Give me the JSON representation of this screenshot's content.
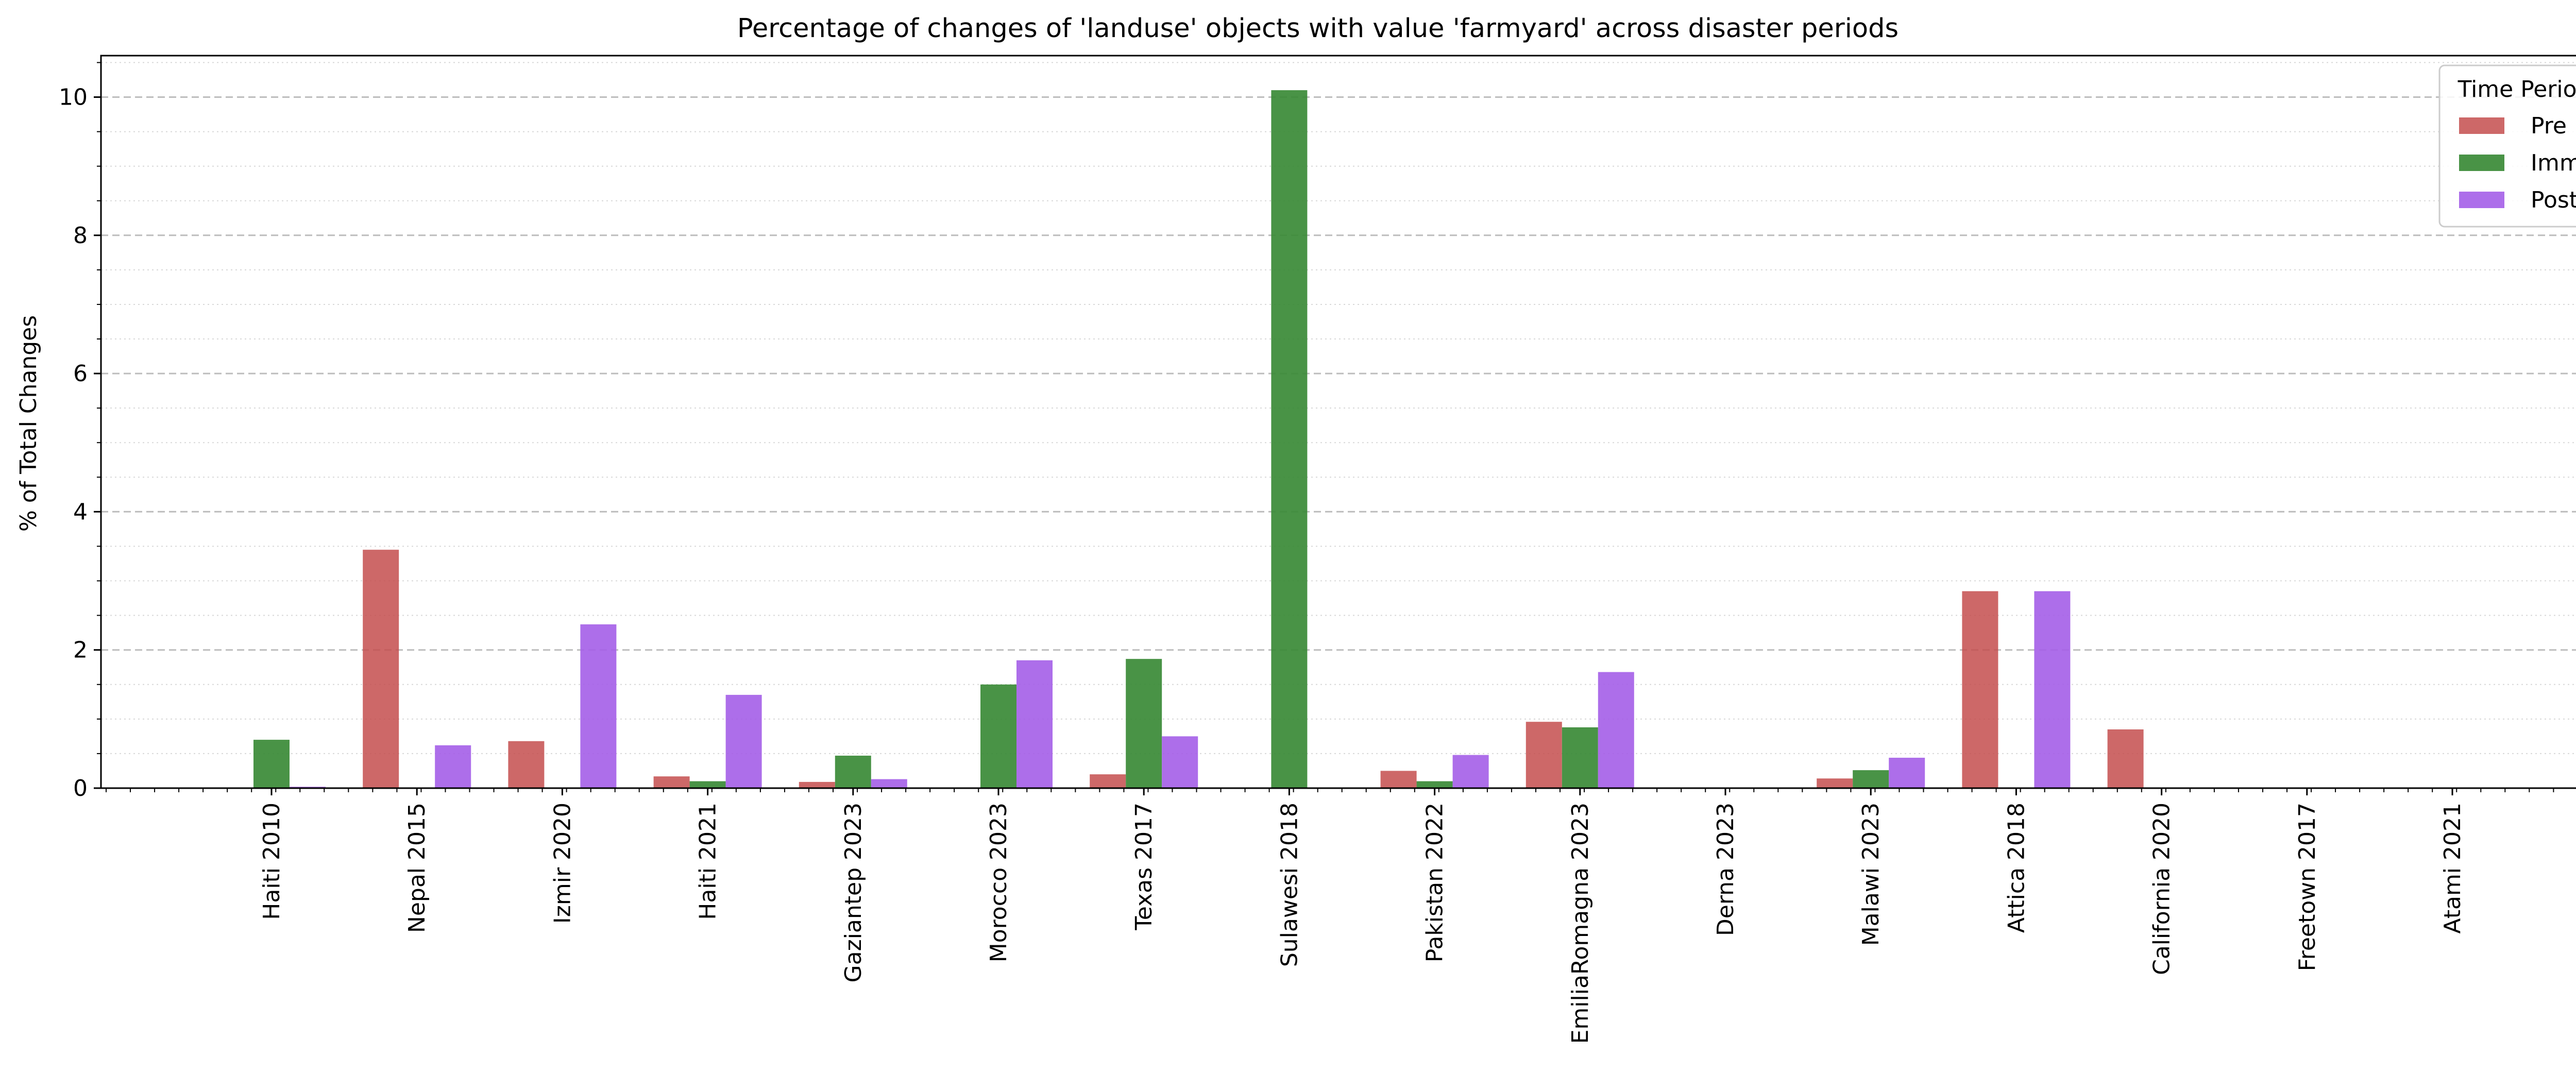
{
  "chart_data": {
    "type": "bar",
    "title": "Percentage of changes of 'landuse' objects with value 'farmyard' across disaster periods",
    "xlabel": "",
    "ylabel": "% of Total Changes",
    "ylim": [
      0,
      10.6
    ],
    "yticks": [
      "0",
      "2",
      "4",
      "6",
      "8",
      "10"
    ],
    "grid": "y (major dashed, minor dotted)",
    "legend": {
      "title": "Time Period",
      "placement": "top-right"
    },
    "categories": [
      "Haiti 2010",
      "Nepal 2015",
      "Izmir 2020",
      "Haiti 2021",
      "Gaziantep 2023",
      "Morocco 2023",
      "Texas 2017",
      "Sulawesi 2018",
      "Pakistan 2022",
      "EmiliaRomagna 2023",
      "Derna 2023",
      "Malawi 2023",
      "Attica 2018",
      "California 2020",
      "Freetown 2017",
      "Atami 2021"
    ],
    "series": [
      {
        "name": "Pre",
        "color": "#c44e4e",
        "values": [
          0,
          3.45,
          0.68,
          0.17,
          0.09,
          0,
          0.2,
          0,
          0.25,
          0.96,
          0,
          0.14,
          2.85,
          0.85,
          0,
          0
        ]
      },
      {
        "name": "Imm",
        "color": "#3a8a36",
        "values": [
          0.7,
          0,
          0,
          0.1,
          0.47,
          1.5,
          1.87,
          10.1,
          0.1,
          0.88,
          0,
          0.26,
          0,
          0,
          0,
          0
        ]
      },
      {
        "name": "Post",
        "color": "#a45ee8",
        "values": [
          0.02,
          0.62,
          2.37,
          1.35,
          0.13,
          1.85,
          0.75,
          0,
          0.48,
          1.68,
          0,
          0.44,
          2.85,
          0,
          0,
          0
        ]
      }
    ]
  }
}
